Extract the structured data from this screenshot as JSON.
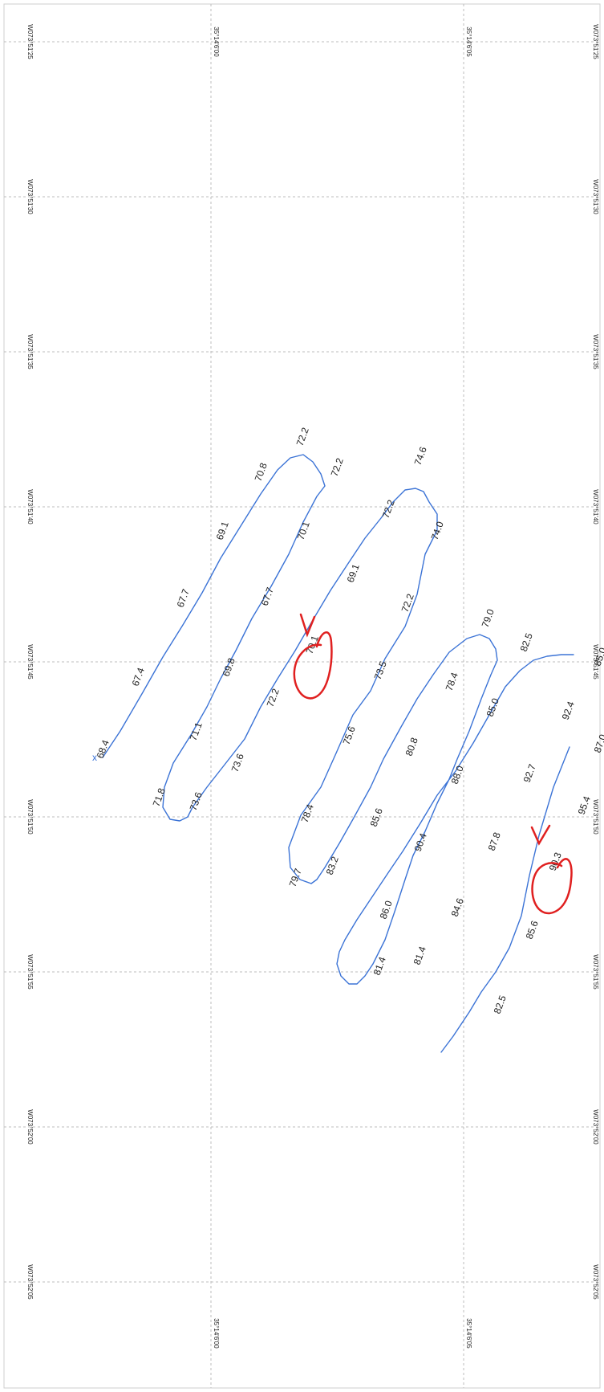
{
  "longitude_labels": [
    "W073°51'25",
    "W073°51'30",
    "W073°51'35",
    "W073°51'40",
    "W073°51'45",
    "W073°51'50",
    "W073°51'55",
    "W073°52'00",
    "W073°52'05"
  ],
  "latitude_labels": [
    "35°14'6'00",
    "35°14'6'05"
  ],
  "track_start_marker": "x",
  "soundings": [
    "68.4",
    "67.4",
    "67.7",
    "69.1",
    "70.8",
    "72.2",
    "72.2",
    "70.1",
    "67.7",
    "69.8",
    "71.1",
    "71.8",
    "73.6",
    "73.6",
    "72.2",
    "70.1",
    "69.1",
    "72.2",
    "74.6",
    "74.0",
    "72.2",
    "73.5",
    "75.6",
    "78.4",
    "79.7",
    "83.2",
    "85.6",
    "80.8",
    "78.4",
    "79.0",
    "82.5",
    "85.0",
    "88.0",
    "90.4",
    "86.0",
    "81.4",
    "81.4",
    "84.6",
    "87.8",
    "92.7",
    "92.4",
    "95.4",
    "90.3",
    "85.6",
    "82.5",
    "85.0",
    "87.0"
  ],
  "colors": {
    "track": "#3b73d6",
    "annotation": "#e02020",
    "grid": "#bdbdbd"
  }
}
